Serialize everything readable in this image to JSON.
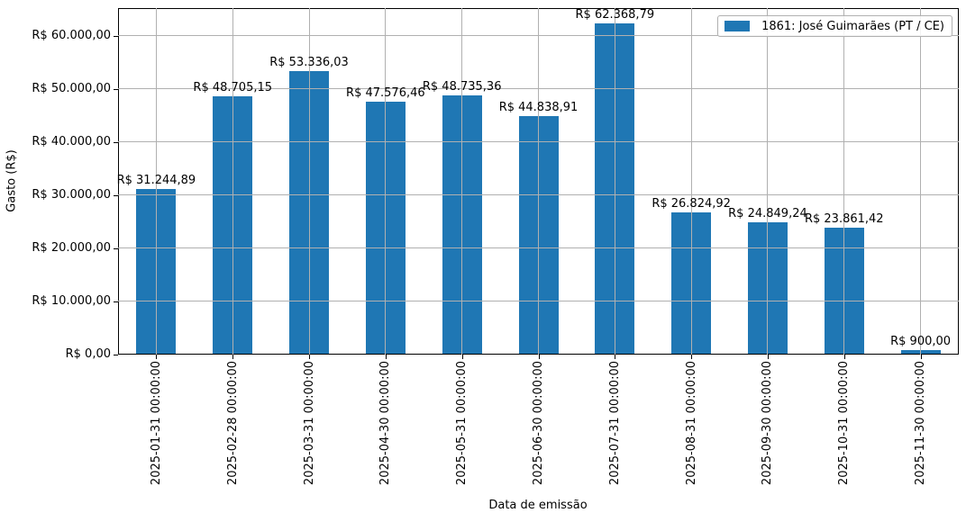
{
  "chart_data": {
    "type": "bar",
    "title": "",
    "xlabel": "Data de emissão",
    "ylabel": "Gasto (R$)",
    "categories": [
      "2025-01-31 00:00:00",
      "2025-02-28 00:00:00",
      "2025-03-31 00:00:00",
      "2025-04-30 00:00:00",
      "2025-05-31 00:00:00",
      "2025-06-30 00:00:00",
      "2025-07-31 00:00:00",
      "2025-08-31 00:00:00",
      "2025-09-30 00:00:00",
      "2025-10-31 00:00:00",
      "2025-11-30 00:00:00"
    ],
    "values": [
      31244.89,
      48705.15,
      53336.03,
      47576.46,
      48735.36,
      44838.91,
      62368.79,
      26824.92,
      24849.24,
      23861.42,
      900.0
    ],
    "bar_labels": [
      "R$ 31.244,89",
      "R$ 48.705,15",
      "R$ 53.336,03",
      "R$ 47.576,46",
      "R$ 48.735,36",
      "R$ 44.838,91",
      "R$ 62.368,79",
      "R$ 26.824,92",
      "R$ 24.849,24",
      "R$ 23.861,42",
      "R$ 900,00"
    ],
    "ytick_values": [
      0,
      10000,
      20000,
      30000,
      40000,
      50000,
      60000
    ],
    "ytick_labels": [
      "R$ 0,00",
      "R$ 10.000,00",
      "R$ 20.000,00",
      "R$ 30.000,00",
      "R$ 40.000,00",
      "R$ 50.000,00",
      "R$ 60.000,00"
    ],
    "ylim": [
      0,
      65254
    ],
    "grid": true,
    "legend": {
      "label": "1861: José Guimarães (PT / CE)",
      "position": "upper right"
    },
    "colors": {
      "bar": "#1f77b4",
      "grid": "#b0b0b0",
      "spine": "#000000"
    }
  }
}
